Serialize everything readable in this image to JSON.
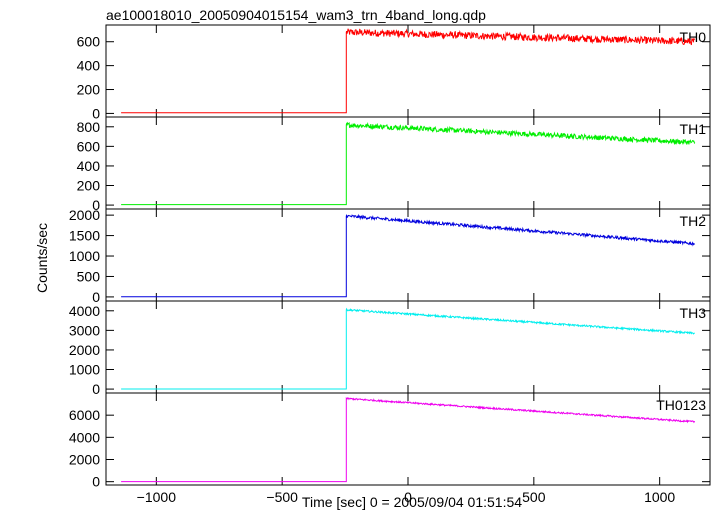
{
  "chart_data": {
    "type": "line",
    "title": "ae100018010_20050904015154_wam3_trn_4band_long.qdp",
    "xlabel": "Time [sec] 0 = 2005/09/04 01:51:54",
    "ylabel": "Counts/sec",
    "xlim": [
      -1200,
      1200
    ],
    "x_ticks": [
      -1000,
      -500,
      0,
      500,
      1000
    ],
    "x_tick_labels": [
      "−1000",
      "−500",
      "0",
      "500",
      "1000"
    ],
    "trigger_time": -245,
    "x_start": -1140,
    "x_end": 1140,
    "grid": false,
    "series": [
      {
        "name": "TH0",
        "color": "#ff0000",
        "ylim": [
          -30,
          740
        ],
        "y_ticks": [
          0,
          200,
          400,
          600
        ],
        "baseline": 5,
        "peak": 680,
        "end": 600,
        "noise": 30
      },
      {
        "name": "TH1",
        "color": "#00ee00",
        "ylim": [
          -40,
          900
        ],
        "y_ticks": [
          0,
          200,
          400,
          600,
          800
        ],
        "baseline": 5,
        "peak": 820,
        "end": 640,
        "noise": 25
      },
      {
        "name": "TH2",
        "color": "#0000dd",
        "ylim": [
          -100,
          2150
        ],
        "y_ticks": [
          0,
          500,
          1000,
          1500,
          2000
        ],
        "baseline": 5,
        "peak": 1980,
        "end": 1300,
        "noise": 35
      },
      {
        "name": "TH3",
        "color": "#00eeee",
        "ylim": [
          -200,
          4500
        ],
        "y_ticks": [
          0,
          1000,
          2000,
          3000,
          4000
        ],
        "baseline": 5,
        "peak": 4050,
        "end": 2850,
        "noise": 45
      },
      {
        "name": "TH0123",
        "color": "#ee00ee",
        "ylim": [
          -300,
          8000
        ],
        "y_ticks": [
          0,
          2000,
          4000,
          6000
        ],
        "baseline": 5,
        "peak": 7500,
        "end": 5400,
        "noise": 70
      }
    ]
  }
}
